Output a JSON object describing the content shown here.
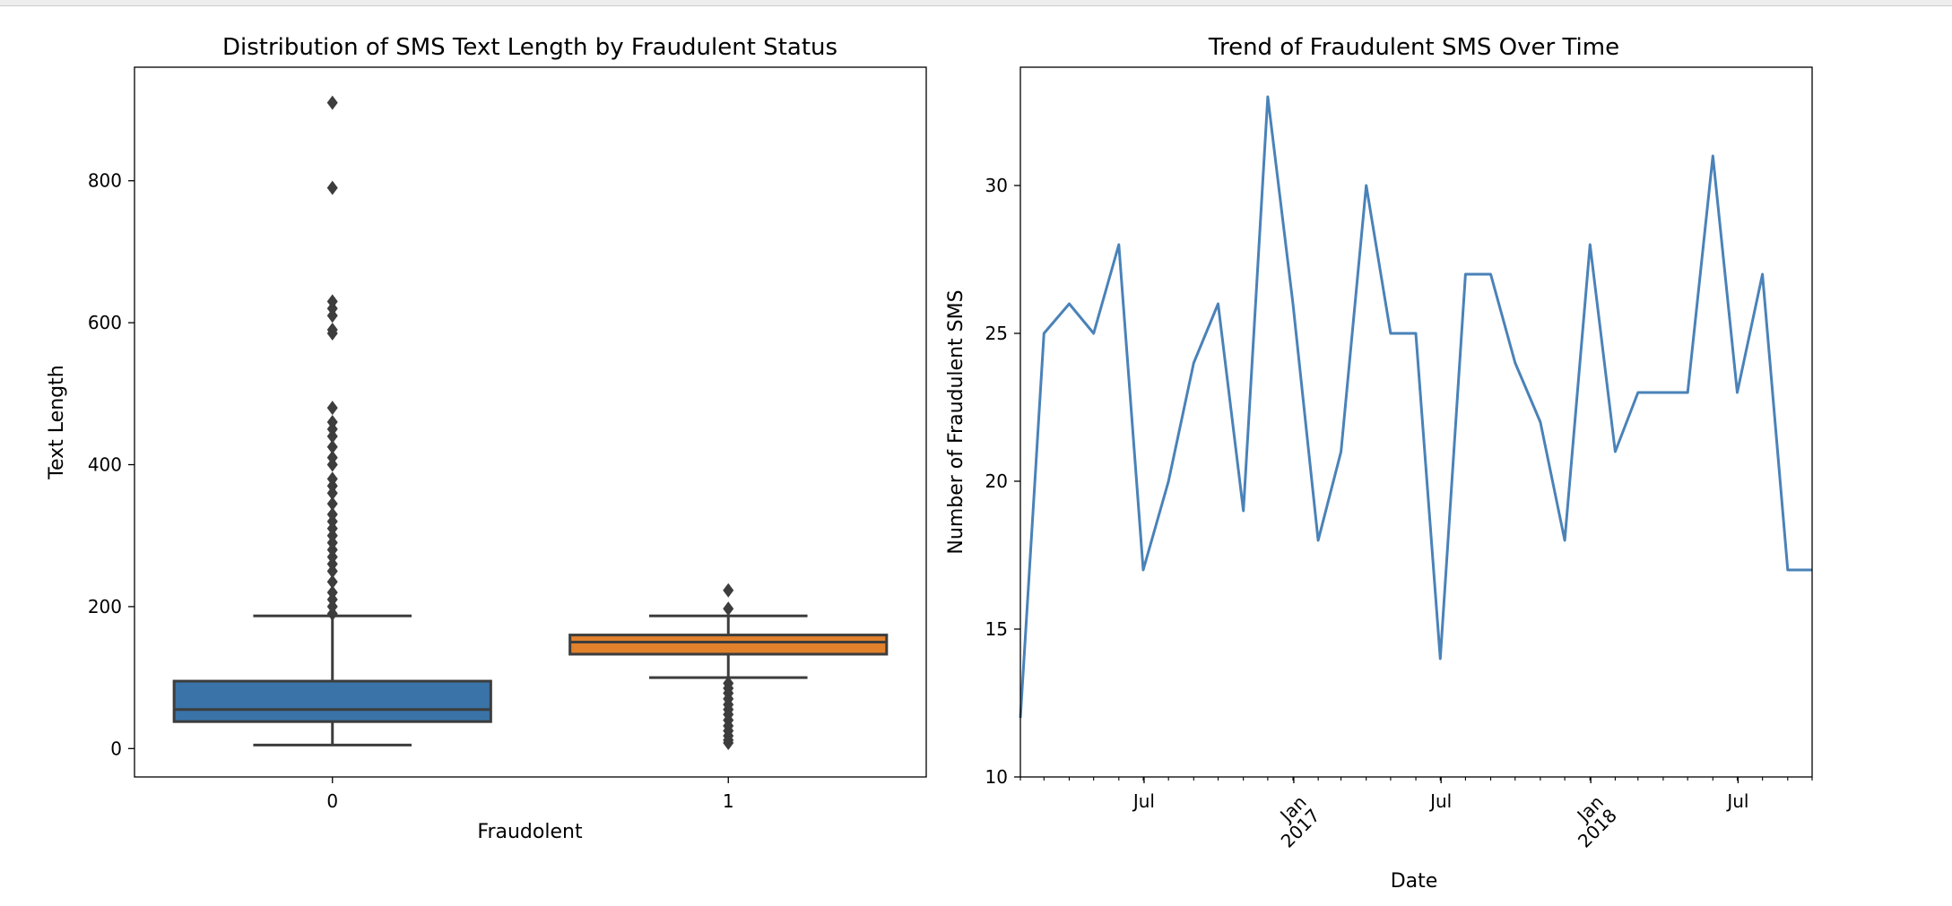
{
  "chart_data": [
    {
      "type": "box",
      "title": "Distribution of SMS Text Length by Fraudulent Status",
      "xlabel": "Fraudolent",
      "ylabel": "Text Length",
      "ylim": [
        -40,
        960
      ],
      "yticks": [
        0,
        200,
        400,
        600,
        800
      ],
      "categories": [
        "0",
        "1"
      ],
      "colors": [
        "#3a73a8",
        "#e1812c"
      ],
      "boxes": [
        {
          "category": "0",
          "whisker_low": 5,
          "q1": 38,
          "median": 55,
          "q3": 95,
          "whisker_high": 187,
          "outliers": [
            190,
            200,
            210,
            220,
            235,
            250,
            260,
            270,
            280,
            290,
            300,
            310,
            320,
            330,
            345,
            360,
            370,
            380,
            400,
            410,
            425,
            440,
            450,
            460,
            480,
            585,
            590,
            610,
            620,
            630,
            790,
            910
          ]
        },
        {
          "category": "1",
          "whisker_low": 100,
          "q1": 133,
          "median": 150,
          "q3": 160,
          "whisker_high": 187,
          "outliers": [
            8,
            12,
            18,
            25,
            32,
            40,
            48,
            55,
            62,
            70,
            78,
            85,
            92,
            197,
            223
          ]
        }
      ]
    },
    {
      "type": "line",
      "title": "Trend of Fraudulent SMS Over Time",
      "xlabel": "Date",
      "ylabel": "Number of Fraudulent SMS",
      "ylim": [
        10,
        34
      ],
      "yticks": [
        10,
        15,
        20,
        25,
        30
      ],
      "xlim": [
        "2016-01-31",
        "2018-09-30"
      ],
      "xticks": [
        {
          "date": "2016-07-01",
          "label": "Jul"
        },
        {
          "date": "2017-01-01",
          "label": "Jan\n2017"
        },
        {
          "date": "2017-07-01",
          "label": "Jul"
        },
        {
          "date": "2018-01-01",
          "label": "Jan\n2018"
        },
        {
          "date": "2018-07-01",
          "label": "Jul"
        }
      ],
      "color": "#4a82b8",
      "x": [
        "2016-01-31",
        "2016-02-29",
        "2016-03-31",
        "2016-04-30",
        "2016-05-31",
        "2016-06-30",
        "2016-07-31",
        "2016-08-31",
        "2016-09-30",
        "2016-10-31",
        "2016-11-30",
        "2016-12-31",
        "2017-01-31",
        "2017-02-28",
        "2017-03-31",
        "2017-04-30",
        "2017-05-31",
        "2017-06-30",
        "2017-07-31",
        "2017-08-31",
        "2017-09-30",
        "2017-10-31",
        "2017-11-30",
        "2017-12-31",
        "2018-01-31",
        "2018-02-28",
        "2018-03-31",
        "2018-04-30",
        "2018-05-31",
        "2018-06-30",
        "2018-07-31",
        "2018-08-31",
        "2018-09-30"
      ],
      "y": [
        12,
        25,
        26,
        25,
        28,
        17,
        20,
        24,
        26,
        19,
        33,
        26,
        18,
        21,
        30,
        25,
        25,
        14,
        27,
        27,
        24,
        22,
        18,
        28,
        21,
        23,
        23,
        23,
        31,
        23,
        27,
        17,
        17
      ]
    }
  ]
}
